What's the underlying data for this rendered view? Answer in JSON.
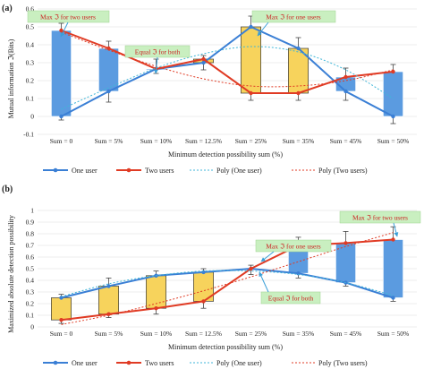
{
  "chart_data": [
    {
      "panel_label": "(a)",
      "type": "line",
      "ylabel": "Mutual information ℑ(Bits)",
      "xlabel": "Minimum detection possibility sum (%)",
      "categories": [
        "Sum = 0",
        "Sum = 5%",
        "Sum = 10%",
        "Sum = 12.5%",
        "Sum = 25%",
        "Sum = 35%",
        "Sum = 45%",
        "Sum = 50%"
      ],
      "ylim": [
        -0.1,
        0.6
      ],
      "yticks": [
        "-0.1",
        "0",
        "0.1",
        "0.2",
        "0.3",
        "0.4",
        "0.5",
        "0.6"
      ],
      "ytick_values": [
        -0.1,
        0,
        0.1,
        0.2,
        0.3,
        0.4,
        0.5,
        0.6
      ],
      "grid": "horizontal",
      "series": [
        {
          "name": "One user",
          "kind": "line",
          "color": "#3a7fd5",
          "values": [
            0.0,
            0.14,
            0.265,
            0.3,
            0.5,
            0.38,
            0.14,
            0.0
          ]
        },
        {
          "name": "Two users",
          "kind": "line",
          "color": "#e03b24",
          "values": [
            0.48,
            0.38,
            0.265,
            0.32,
            0.13,
            0.13,
            0.22,
            0.25
          ]
        },
        {
          "name": "Poly (One user)",
          "kind": "poly",
          "color": "#3fb6d8",
          "values": [
            0.04,
            0.16,
            0.27,
            0.35,
            0.39,
            0.36,
            0.26,
            0.1
          ]
        },
        {
          "name": "Poly (Two users)",
          "kind": "poly",
          "color": "#e03b24",
          "values": [
            0.47,
            0.37,
            0.28,
            0.21,
            0.17,
            0.17,
            0.2,
            0.26
          ]
        }
      ],
      "boxes": [
        {
          "low": 0.0,
          "high": 0.48,
          "color": "#5b9be0"
        },
        {
          "low": 0.14,
          "high": 0.38,
          "color": "#5b9be0"
        },
        {
          "low": 0.265,
          "high": 0.265,
          "color": "#5b9be0"
        },
        {
          "low": 0.3,
          "high": 0.32,
          "color": "#f7d35c"
        },
        {
          "low": 0.13,
          "high": 0.5,
          "color": "#f7d35c"
        },
        {
          "low": 0.13,
          "high": 0.38,
          "color": "#f7d35c"
        },
        {
          "low": 0.14,
          "high": 0.22,
          "color": "#5b9be0"
        },
        {
          "low": 0.0,
          "high": 0.25,
          "color": "#5b9be0"
        }
      ],
      "whiskers": [
        {
          "low": -0.02,
          "high": 0.52
        },
        {
          "low": 0.08,
          "high": 0.42
        },
        {
          "low": 0.24,
          "high": 0.32
        },
        {
          "low": 0.26,
          "high": 0.34
        },
        {
          "low": 0.09,
          "high": 0.56
        },
        {
          "low": 0.09,
          "high": 0.44
        },
        {
          "low": 0.09,
          "high": 0.27
        },
        {
          "low": -0.04,
          "high": 0.29
        }
      ],
      "annotations": [
        {
          "text": "Max ℑ for two users",
          "at_category": 0,
          "at_value": 0.49
        },
        {
          "text": "Equal ℑ for both",
          "at_category": 2,
          "at_value": 0.265
        },
        {
          "text": "Max ℑ for one users",
          "at_category": 4,
          "at_value": 0.5
        }
      ],
      "legend_position": "bottom"
    },
    {
      "panel_label": "(b)",
      "type": "line",
      "ylabel": "Maximized absolute detection possibility",
      "xlabel": "Minimum detection possibility sum (%)",
      "categories": [
        "Sum = 0",
        "Sum = 5%",
        "Sum = 10%",
        "Sum = 12.5%",
        "Sum = 25%",
        "Sum = 35%",
        "Sum = 45%",
        "Sum = 50%"
      ],
      "ylim": [
        0,
        1
      ],
      "yticks": [
        "0",
        "0.1",
        "0.2",
        "0.3",
        "0.4",
        "0.5",
        "0.6",
        "0.7",
        "0.8",
        "0.9",
        "1"
      ],
      "ytick_values": [
        0,
        0.1,
        0.2,
        0.3,
        0.4,
        0.5,
        0.6,
        0.7,
        0.8,
        0.9,
        1
      ],
      "grid": "horizontal",
      "series": [
        {
          "name": "One user",
          "kind": "line",
          "color": "#3a7fd5",
          "values": [
            0.25,
            0.35,
            0.44,
            0.47,
            0.5,
            0.46,
            0.38,
            0.25
          ]
        },
        {
          "name": "Two users",
          "kind": "line",
          "color": "#e03b24",
          "values": [
            0.06,
            0.11,
            0.16,
            0.22,
            0.5,
            0.7,
            0.72,
            0.75
          ]
        },
        {
          "name": "Poly (One user)",
          "kind": "poly",
          "color": "#3fb6d8",
          "values": [
            0.26,
            0.37,
            0.44,
            0.48,
            0.48,
            0.45,
            0.38,
            0.27
          ]
        },
        {
          "name": "Poly (Two users)",
          "kind": "poly",
          "color": "#e03b24",
          "values": [
            0.02,
            0.1,
            0.2,
            0.31,
            0.43,
            0.56,
            0.69,
            0.81
          ]
        }
      ],
      "boxes": [
        {
          "low": 0.06,
          "high": 0.25,
          "color": "#f7d35c"
        },
        {
          "low": 0.11,
          "high": 0.35,
          "color": "#f7d35c"
        },
        {
          "low": 0.16,
          "high": 0.44,
          "color": "#f7d35c"
        },
        {
          "low": 0.22,
          "high": 0.47,
          "color": "#f7d35c"
        },
        {
          "low": 0.5,
          "high": 0.5,
          "color": "#5b9be0"
        },
        {
          "low": 0.46,
          "high": 0.7,
          "color": "#5b9be0"
        },
        {
          "low": 0.38,
          "high": 0.72,
          "color": "#5b9be0"
        },
        {
          "low": 0.25,
          "high": 0.75,
          "color": "#5b9be0"
        }
      ],
      "whiskers": [
        {
          "low": 0.03,
          "high": 0.28
        },
        {
          "low": 0.08,
          "high": 0.42
        },
        {
          "low": 0.11,
          "high": 0.48
        },
        {
          "low": 0.16,
          "high": 0.5
        },
        {
          "low": 0.45,
          "high": 0.53
        },
        {
          "low": 0.42,
          "high": 0.77
        },
        {
          "low": 0.35,
          "high": 0.82
        },
        {
          "low": 0.22,
          "high": 0.86
        }
      ],
      "annotations": [
        {
          "text": "Max ℑ for one users",
          "at_category": 4,
          "at_value": 0.5
        },
        {
          "text": "Equal ℑ for both",
          "at_category": 4,
          "at_value": 0.5
        },
        {
          "text": "Max ℑ for two users",
          "at_category": 7,
          "at_value": 0.75
        }
      ],
      "legend_position": "bottom"
    }
  ]
}
